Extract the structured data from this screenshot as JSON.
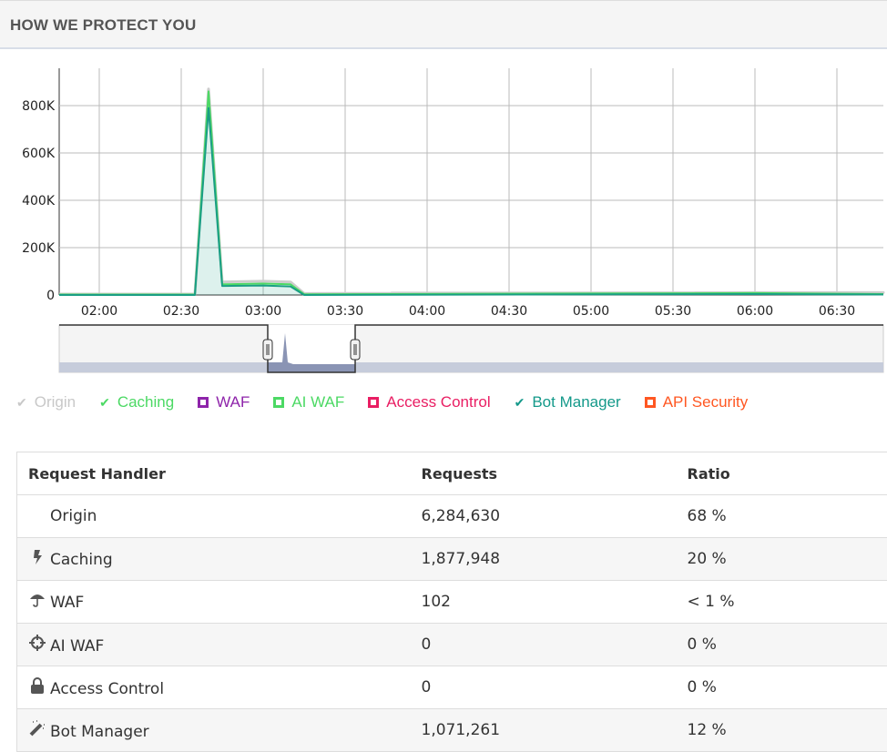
{
  "header": {
    "title": "HOW WE PROTECT YOU"
  },
  "chart_data": {
    "type": "area",
    "title": "",
    "xlabel": "",
    "ylabel": "",
    "x_ticks": [
      "02:00",
      "02:30",
      "03:00",
      "03:30",
      "04:00",
      "04:30",
      "05:00",
      "05:30",
      "06:00",
      "06:30"
    ],
    "y_ticks": [
      "0",
      "200K",
      "400K",
      "600K",
      "800K"
    ],
    "ylim": [
      0,
      800000
    ],
    "xlim_minutes_from_0200": [
      -15,
      107
    ],
    "grid": true,
    "series": [
      {
        "name": "Origin",
        "color": "#cccccc",
        "x": [
          -15,
          35,
          40,
          45,
          60,
          70,
          75,
          240,
          287,
          107
        ],
        "values": [
          4000,
          4000,
          870000,
          55000,
          58000,
          55000,
          6000,
          10000,
          10000,
          8000
        ]
      },
      {
        "name": "Caching",
        "color": "#4cd964",
        "x": [
          -15,
          35,
          40,
          45,
          60,
          70,
          75,
          240,
          287
        ],
        "values": [
          2000,
          2000,
          860000,
          45000,
          48000,
          45000,
          3000,
          8000,
          4000
        ]
      },
      {
        "name": "Bot Manager",
        "color": "#1a9e84",
        "x": [
          -15,
          35,
          40,
          45,
          60,
          70,
          75,
          240,
          287
        ],
        "values": [
          0,
          0,
          790000,
          38000,
          40000,
          36000,
          0,
          4000,
          2000
        ]
      }
    ]
  },
  "legend": [
    {
      "label": "Origin",
      "color": "#c8c8c8",
      "marker": "check"
    },
    {
      "label": "Caching",
      "color": "#4cd964",
      "marker": "check"
    },
    {
      "label": "WAF",
      "color": "#8e24aa",
      "marker": "box"
    },
    {
      "label": "AI WAF",
      "color": "#4cd964",
      "marker": "box"
    },
    {
      "label": "Access Control",
      "color": "#e91e63",
      "marker": "box"
    },
    {
      "label": "Bot Manager",
      "color": "#14998a",
      "marker": "check"
    },
    {
      "label": "API Security",
      "color": "#ff5722",
      "marker": "box"
    }
  ],
  "table": {
    "headers": [
      "Request Handler",
      "Requests",
      "Ratio"
    ],
    "rows": [
      {
        "icon": "none",
        "handler": "Origin",
        "requests": "6,284,630",
        "ratio": "68 %"
      },
      {
        "icon": "bolt-icon",
        "handler": "Caching",
        "requests": "1,877,948",
        "ratio": "20 %"
      },
      {
        "icon": "umbrella-icon",
        "handler": "WAF",
        "requests": "102",
        "ratio": "< 1 %"
      },
      {
        "icon": "crosshairs-icon",
        "handler": "AI WAF",
        "requests": "0",
        "ratio": "0 %"
      },
      {
        "icon": "lock-icon",
        "handler": "Access Control",
        "requests": "0",
        "ratio": "0 %"
      },
      {
        "icon": "magic-wand-icon",
        "handler": "Bot Manager",
        "requests": "1,071,261",
        "ratio": "12 %"
      }
    ]
  }
}
